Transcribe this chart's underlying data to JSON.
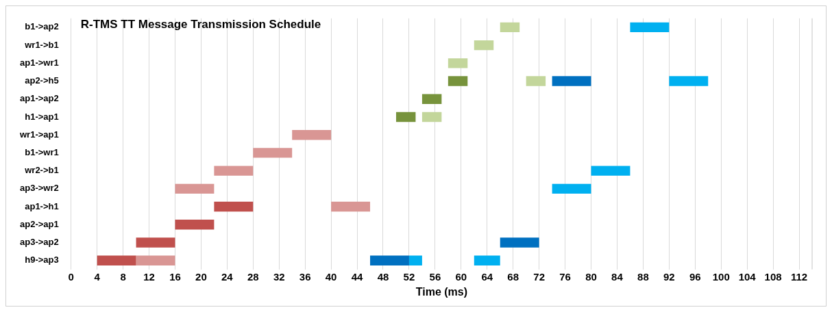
{
  "chart_data": {
    "type": "bar",
    "orientation": "horizontal",
    "title": "R-TMS TT Message Transmission Schedule",
    "xlabel": "Time (ms)",
    "categories": [
      "b1->ap2",
      "wr1->b1",
      "ap1->wr1",
      "ap2->h5",
      "ap1->ap2",
      "h1->ap1",
      "wr1->ap1",
      "b1->wr1",
      "wr2->b1",
      "ap3->wr2",
      "ap1->h1",
      "ap2->ap1",
      "ap3->ap2",
      "h9->ap3"
    ],
    "series": [
      {
        "color": "#c0504d",
        "base": [
          null,
          null,
          null,
          null,
          null,
          null,
          null,
          null,
          null,
          null,
          22,
          16,
          10,
          4
        ],
        "values": [
          null,
          null,
          null,
          null,
          null,
          null,
          null,
          null,
          null,
          null,
          6,
          6,
          6,
          6
        ]
      },
      {
        "color": "#d99694",
        "base": [
          null,
          null,
          null,
          null,
          null,
          null,
          34,
          28,
          22,
          16,
          40,
          null,
          null,
          10
        ],
        "values": [
          null,
          null,
          null,
          null,
          null,
          null,
          6,
          6,
          6,
          6,
          6,
          null,
          null,
          6
        ]
      },
      {
        "color": "#77933c",
        "base": [
          null,
          null,
          null,
          58,
          54,
          50,
          null,
          null,
          null,
          null,
          null,
          null,
          null,
          null
        ],
        "values": [
          null,
          null,
          null,
          3,
          3,
          3,
          null,
          null,
          null,
          null,
          null,
          null,
          null,
          null
        ]
      },
      {
        "color": "#c3d69b",
        "base": [
          66,
          62,
          58,
          70,
          null,
          54,
          null,
          null,
          null,
          null,
          null,
          null,
          null,
          null
        ],
        "values": [
          3,
          3,
          3,
          3,
          null,
          3,
          null,
          null,
          null,
          null,
          null,
          null,
          null,
          null
        ]
      },
      {
        "color": "#0070c0",
        "base": [
          null,
          null,
          null,
          74,
          null,
          null,
          null,
          null,
          null,
          null,
          null,
          null,
          66,
          46
        ],
        "values": [
          null,
          null,
          null,
          6,
          null,
          null,
          null,
          null,
          null,
          null,
          null,
          null,
          6,
          6
        ]
      },
      {
        "color": "#00b0f0",
        "base": [
          86,
          null,
          null,
          92,
          null,
          null,
          null,
          null,
          80,
          74,
          null,
          null,
          null,
          52
        ],
        "values": [
          6,
          null,
          null,
          6,
          null,
          null,
          null,
          null,
          6,
          6,
          null,
          null,
          null,
          2
        ]
      },
      {
        "color": "#00b0f0",
        "base": [
          null,
          null,
          null,
          null,
          null,
          null,
          null,
          null,
          null,
          null,
          null,
          null,
          null,
          62
        ],
        "values": [
          null,
          null,
          null,
          null,
          null,
          null,
          null,
          null,
          null,
          null,
          null,
          null,
          null,
          4
        ]
      }
    ],
    "xlim": [
      0,
      114
    ],
    "xticks": [
      0,
      4,
      8,
      12,
      16,
      20,
      24,
      28,
      32,
      36,
      40,
      44,
      48,
      52,
      56,
      60,
      64,
      68,
      72,
      76,
      80,
      84,
      88,
      92,
      96,
      100,
      104,
      108,
      112
    ],
    "grid": "x",
    "legend": false
  }
}
